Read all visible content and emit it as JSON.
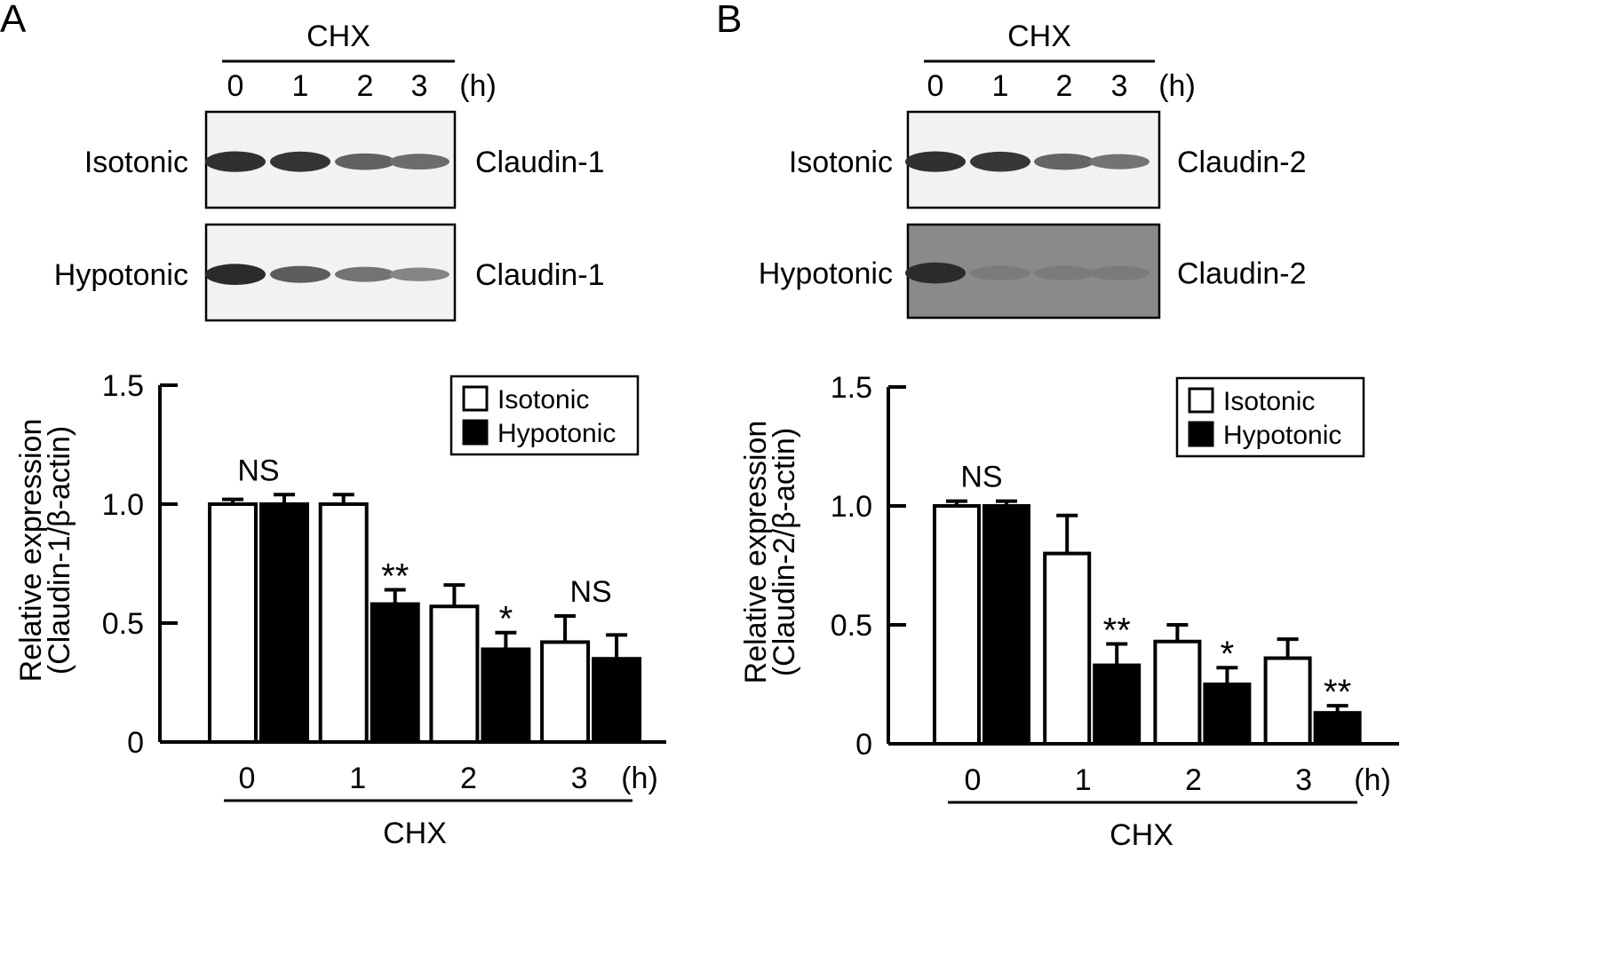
{
  "panels": [
    {
      "letter": "A",
      "blot": {
        "treatment": "CHX",
        "time_points": [
          "0",
          "1",
          "2",
          "3"
        ],
        "time_unit": "(h)",
        "rows": [
          {
            "condition": "Isotonic",
            "protein": "Claudin-1",
            "intensity": [
              0.95,
              0.92,
              0.62,
              0.55
            ]
          },
          {
            "condition": "Hypotonic",
            "protein": "Claudin-1",
            "intensity": [
              0.98,
              0.65,
              0.5,
              0.38
            ]
          }
        ]
      },
      "chart_data": {
        "type": "bar",
        "categories": [
          "0",
          "1",
          "2",
          "3"
        ],
        "x_unit": "(h)",
        "xlabel": "CHX",
        "ylabel_line1": "Relative expression",
        "ylabel_line2": "(Claudin-1/β-actin)",
        "ylim": [
          0,
          1.5
        ],
        "yticks": [
          "0",
          "0.5",
          "1.0",
          "1.5"
        ],
        "ytick_values": [
          0,
          0.5,
          1.0,
          1.5
        ],
        "legend_position": "top-right",
        "series": [
          {
            "name": "Isotonic",
            "fill": "#ffffff",
            "values": [
              1.0,
              1.0,
              0.57,
              0.42
            ],
            "errors": [
              0.02,
              0.04,
              0.09,
              0.11
            ]
          },
          {
            "name": "Hypotonic",
            "fill": "#000000",
            "values": [
              1.0,
              0.58,
              0.39,
              0.35
            ],
            "errors": [
              0.04,
              0.06,
              0.07,
              0.1
            ]
          }
        ],
        "annotations": [
          {
            "category": 0,
            "series": "both",
            "text": "NS"
          },
          {
            "category": 1,
            "series": 1,
            "text": "**"
          },
          {
            "category": 2,
            "series": 1,
            "text": "*"
          },
          {
            "category": 3,
            "series": "both",
            "text": "NS"
          }
        ]
      }
    },
    {
      "letter": "B",
      "blot": {
        "treatment": "CHX",
        "time_points": [
          "0",
          "1",
          "2",
          "3"
        ],
        "time_unit": "(h)",
        "rows": [
          {
            "condition": "Isotonic",
            "protein": "Claudin-2",
            "intensity": [
              0.95,
              0.9,
              0.6,
              0.5
            ]
          },
          {
            "condition": "Hypotonic",
            "protein": "Claudin-2",
            "intensity": [
              0.98,
              0.45,
              0.45,
              0.45
            ]
          }
        ]
      },
      "chart_data": {
        "type": "bar",
        "categories": [
          "0",
          "1",
          "2",
          "3"
        ],
        "x_unit": "(h)",
        "xlabel": "CHX",
        "ylabel_line1": "Relative expression",
        "ylabel_line2": "(Claudin-2/β-actin)",
        "ylim": [
          0,
          1.5
        ],
        "yticks": [
          "0",
          "0.5",
          "1.0",
          "1.5"
        ],
        "ytick_values": [
          0,
          0.5,
          1.0,
          1.5
        ],
        "legend_position": "top-right",
        "series": [
          {
            "name": "Isotonic",
            "fill": "#ffffff",
            "values": [
              1.0,
              0.8,
              0.43,
              0.36
            ],
            "errors": [
              0.02,
              0.16,
              0.07,
              0.08
            ]
          },
          {
            "name": "Hypotonic",
            "fill": "#000000",
            "values": [
              1.0,
              0.33,
              0.25,
              0.13
            ],
            "errors": [
              0.02,
              0.09,
              0.07,
              0.03
            ]
          }
        ],
        "annotations": [
          {
            "category": 0,
            "series": "both",
            "text": "NS"
          },
          {
            "category": 1,
            "series": 1,
            "text": "**"
          },
          {
            "category": 2,
            "series": 1,
            "text": "*"
          },
          {
            "category": 3,
            "series": 1,
            "text": "**"
          }
        ]
      }
    }
  ]
}
